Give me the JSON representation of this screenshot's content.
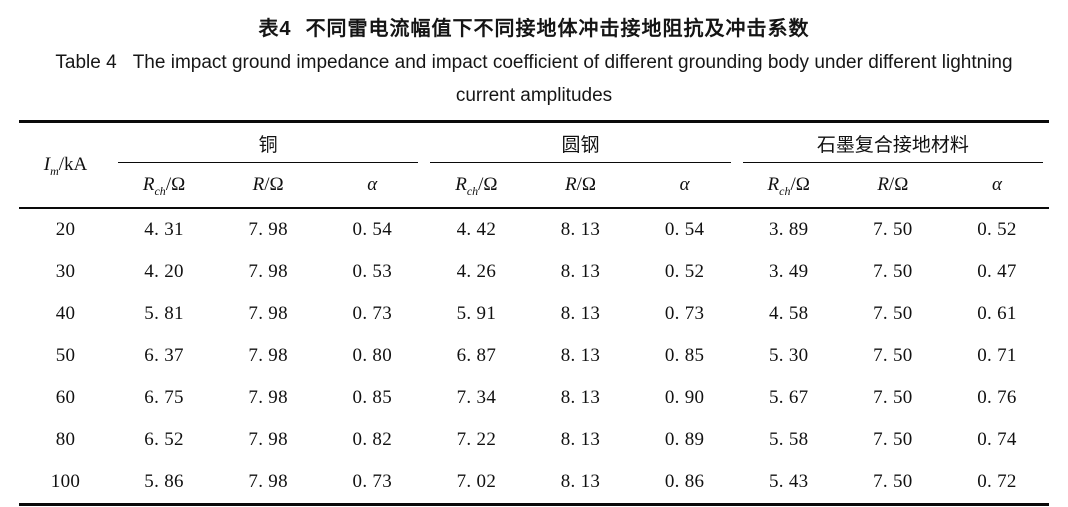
{
  "page": {
    "background_color": "#ffffff",
    "text_color": "#111111",
    "rule_color": "#0a0a0a"
  },
  "caption": {
    "zh": {
      "label": "表4",
      "text": "不同雷电流幅值下不同接地体冲击接地阻抗及冲击系数"
    },
    "en": {
      "label": "Table 4",
      "line1": "The impact ground impedance and impact coefficient of different grounding body under different lightning",
      "line2": "current amplitudes"
    }
  },
  "table": {
    "im_header": {
      "symbol": "I",
      "sub": "m",
      "unit": "/kA"
    },
    "groups": [
      {
        "label": "铜"
      },
      {
        "label": "圆钢"
      },
      {
        "label": "石墨复合接地材料"
      }
    ],
    "subcols": [
      {
        "symbol": "R",
        "sub": "ch",
        "unit": "/Ω"
      },
      {
        "symbol": "R",
        "sub": "",
        "unit": "/Ω"
      },
      {
        "symbol": "α",
        "sub": "",
        "unit": ""
      }
    ],
    "rows": [
      {
        "im": "20",
        "values": [
          "4. 31",
          "7. 98",
          "0. 54",
          "4. 42",
          "8. 13",
          "0. 54",
          "3. 89",
          "7. 50",
          "0. 52"
        ]
      },
      {
        "im": "30",
        "values": [
          "4. 20",
          "7. 98",
          "0. 53",
          "4. 26",
          "8. 13",
          "0. 52",
          "3. 49",
          "7. 50",
          "0. 47"
        ]
      },
      {
        "im": "40",
        "values": [
          "5. 81",
          "7. 98",
          "0. 73",
          "5. 91",
          "8. 13",
          "0. 73",
          "4. 58",
          "7. 50",
          "0. 61"
        ]
      },
      {
        "im": "50",
        "values": [
          "6. 37",
          "7. 98",
          "0. 80",
          "6. 87",
          "8. 13",
          "0. 85",
          "5. 30",
          "7. 50",
          "0. 71"
        ]
      },
      {
        "im": "60",
        "values": [
          "6. 75",
          "7. 98",
          "0. 85",
          "7. 34",
          "8. 13",
          "0. 90",
          "5. 67",
          "7. 50",
          "0. 76"
        ]
      },
      {
        "im": "80",
        "values": [
          "6. 52",
          "7. 98",
          "0. 82",
          "7. 22",
          "8. 13",
          "0. 89",
          "5. 58",
          "7. 50",
          "0. 74"
        ]
      },
      {
        "im": "100",
        "values": [
          "5. 86",
          "7. 98",
          "0. 73",
          "7. 02",
          "8. 13",
          "0. 86",
          "5. 43",
          "7. 50",
          "0. 72"
        ]
      }
    ]
  },
  "chart_data": {
    "type": "table",
    "title_zh": "表4 不同雷电流幅值下不同接地体冲击接地阻抗及冲击系数",
    "title_en": "Table 4 The impact ground impedance and impact coefficient of different grounding body under different lightning current amplitudes",
    "columns": [
      "Im/kA",
      "铜 Rch/Ω",
      "铜 R/Ω",
      "铜 α",
      "圆钢 Rch/Ω",
      "圆钢 R/Ω",
      "圆钢 α",
      "石墨复合接地材料 Rch/Ω",
      "石墨复合接地材料 R/Ω",
      "石墨复合接地材料 α"
    ],
    "rows": [
      [
        20,
        4.31,
        7.98,
        0.54,
        4.42,
        8.13,
        0.54,
        3.89,
        7.5,
        0.52
      ],
      [
        30,
        4.2,
        7.98,
        0.53,
        4.26,
        8.13,
        0.52,
        3.49,
        7.5,
        0.47
      ],
      [
        40,
        5.81,
        7.98,
        0.73,
        5.91,
        8.13,
        0.73,
        4.58,
        7.5,
        0.61
      ],
      [
        50,
        6.37,
        7.98,
        0.8,
        6.87,
        8.13,
        0.85,
        5.3,
        7.5,
        0.71
      ],
      [
        60,
        6.75,
        7.98,
        0.85,
        7.34,
        8.13,
        0.9,
        5.67,
        7.5,
        0.76
      ],
      [
        80,
        6.52,
        7.98,
        0.82,
        7.22,
        8.13,
        0.89,
        5.58,
        7.5,
        0.74
      ],
      [
        100,
        5.86,
        7.98,
        0.73,
        7.02,
        8.13,
        0.86,
        5.43,
        7.5,
        0.72
      ]
    ]
  }
}
